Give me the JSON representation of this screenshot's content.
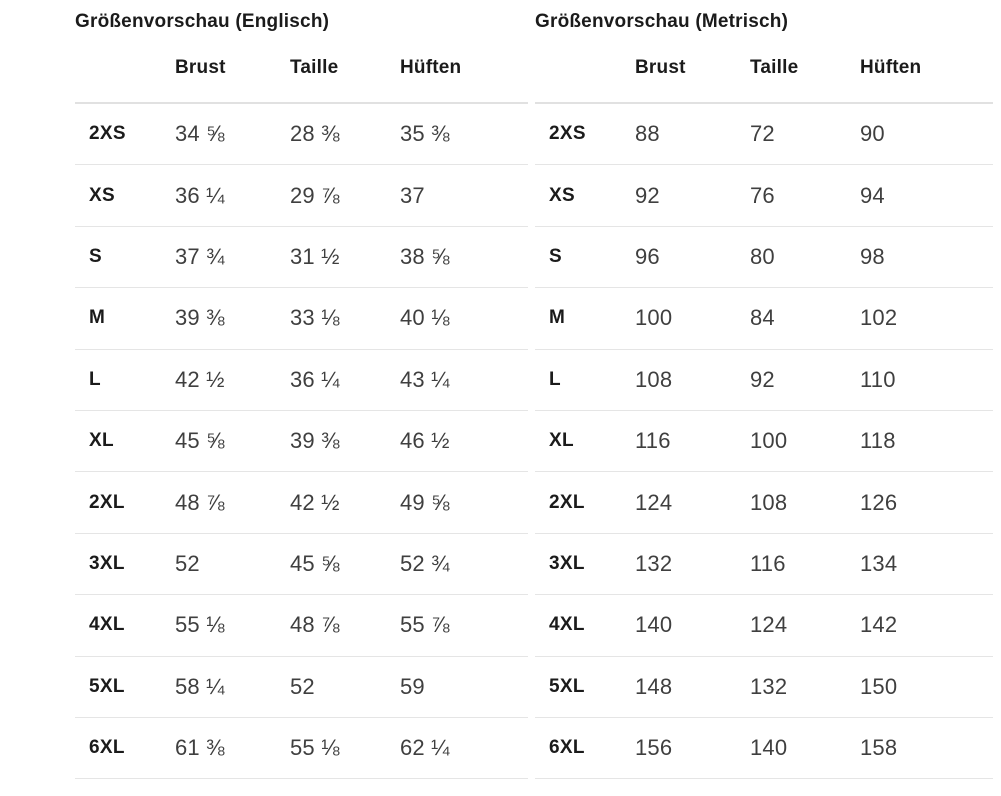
{
  "colors": {
    "background": "#ffffff",
    "heading_text": "#1b1b1b",
    "value_text": "#3f3f3f",
    "divider": "#e2e2e2"
  },
  "tables": [
    {
      "id": "english",
      "title": "Größenvorschau (Englisch)",
      "columns": [
        "Brust",
        "Taille",
        "Hüften"
      ],
      "rows": [
        {
          "size": "2XS",
          "values": [
            "34 ⅝",
            "28 ⅜",
            "35 ⅜"
          ]
        },
        {
          "size": "XS",
          "values": [
            "36 ¼",
            "29 ⅞",
            "37"
          ]
        },
        {
          "size": "S",
          "values": [
            "37 ¾",
            "31 ½",
            "38 ⅝"
          ]
        },
        {
          "size": "M",
          "values": [
            "39 ⅜",
            "33 ⅛",
            "40 ⅛"
          ]
        },
        {
          "size": "L",
          "values": [
            "42 ½",
            "36 ¼",
            "43 ¼"
          ]
        },
        {
          "size": "XL",
          "values": [
            "45 ⅝",
            "39 ⅜",
            "46 ½"
          ]
        },
        {
          "size": "2XL",
          "values": [
            "48 ⅞",
            "42 ½",
            "49 ⅝"
          ]
        },
        {
          "size": "3XL",
          "values": [
            "52",
            "45 ⅝",
            "52 ¾"
          ]
        },
        {
          "size": "4XL",
          "values": [
            "55 ⅛",
            "48 ⅞",
            "55 ⅞"
          ]
        },
        {
          "size": "5XL",
          "values": [
            "58 ¼",
            "52",
            "59"
          ]
        },
        {
          "size": "6XL",
          "values": [
            "61 ⅜",
            "55 ⅛",
            "62 ¼"
          ]
        }
      ]
    },
    {
      "id": "metric",
      "title": "Größenvorschau (Metrisch)",
      "columns": [
        "Brust",
        "Taille",
        "Hüften"
      ],
      "rows": [
        {
          "size": "2XS",
          "values": [
            "88",
            "72",
            "90"
          ]
        },
        {
          "size": "XS",
          "values": [
            "92",
            "76",
            "94"
          ]
        },
        {
          "size": "S",
          "values": [
            "96",
            "80",
            "98"
          ]
        },
        {
          "size": "M",
          "values": [
            "100",
            "84",
            "102"
          ]
        },
        {
          "size": "L",
          "values": [
            "108",
            "92",
            "110"
          ]
        },
        {
          "size": "XL",
          "values": [
            "116",
            "100",
            "118"
          ]
        },
        {
          "size": "2XL",
          "values": [
            "124",
            "108",
            "126"
          ]
        },
        {
          "size": "3XL",
          "values": [
            "132",
            "116",
            "134"
          ]
        },
        {
          "size": "4XL",
          "values": [
            "140",
            "124",
            "142"
          ]
        },
        {
          "size": "5XL",
          "values": [
            "148",
            "132",
            "150"
          ]
        },
        {
          "size": "6XL",
          "values": [
            "156",
            "140",
            "158"
          ]
        }
      ]
    }
  ]
}
